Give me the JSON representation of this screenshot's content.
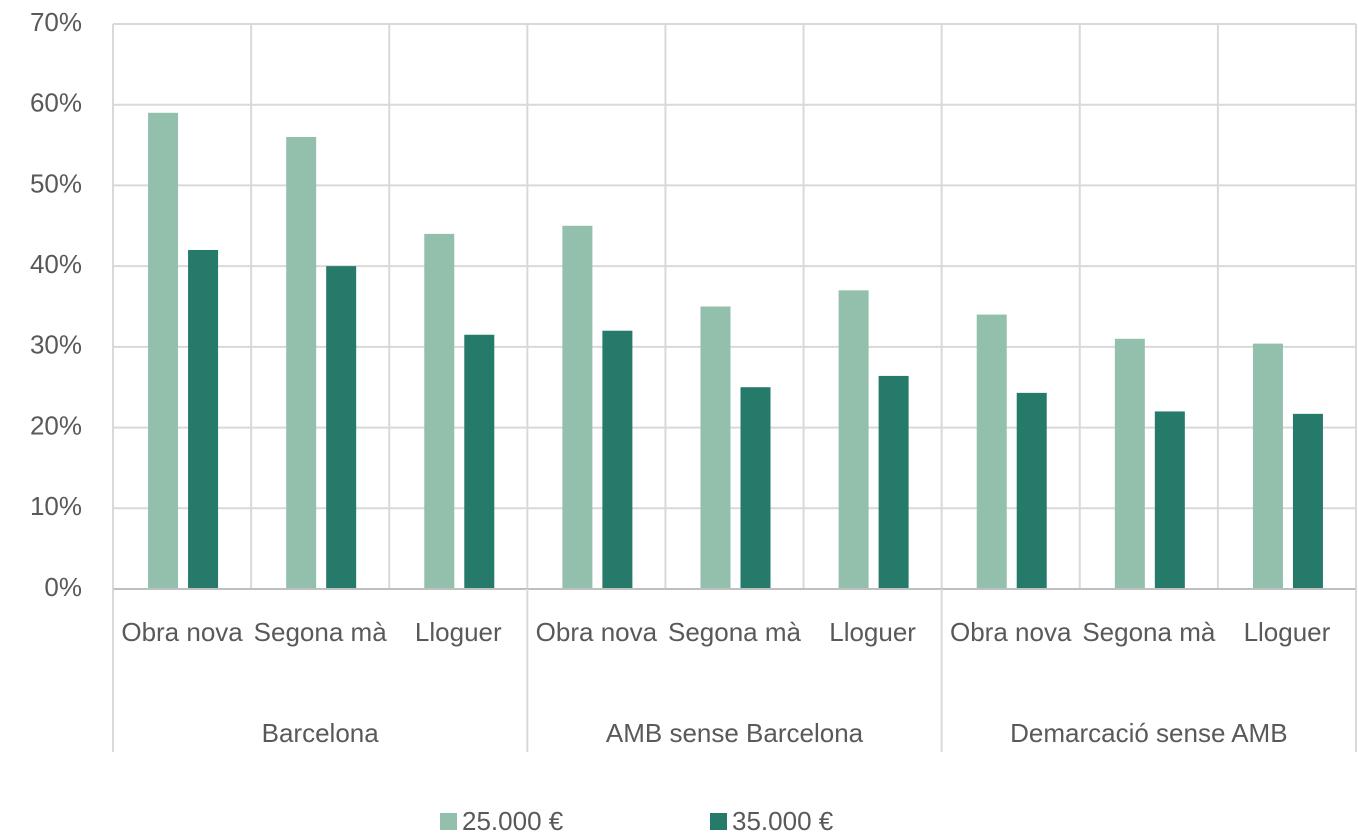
{
  "chart_data": {
    "type": "bar",
    "category_groups": [
      {
        "name": "Barcelona",
        "categories": [
          "Obra nova",
          "Segona mà",
          "Lloguer"
        ]
      },
      {
        "name": "AMB sense Barcelona",
        "categories": [
          "Obra nova",
          "Segona mà",
          "Lloguer"
        ]
      },
      {
        "name": "Demarcació sense AMB",
        "categories": [
          "Obra nova",
          "Segona mà",
          "Lloguer"
        ]
      }
    ],
    "series": [
      {
        "name": "25.000 €",
        "color": "#93bfad",
        "values": [
          59,
          56,
          44,
          45,
          35,
          37,
          34,
          31,
          30.4
        ]
      },
      {
        "name": "35.000 €",
        "color": "#267a69",
        "values": [
          42,
          40,
          31.5,
          32,
          25,
          26.4,
          24.3,
          22,
          21.7
        ]
      }
    ],
    "ylim": [
      0,
      70
    ],
    "yticks": [
      {
        "value": 0,
        "label": "0%"
      },
      {
        "value": 10,
        "label": "10%"
      },
      {
        "value": 20,
        "label": "20%"
      },
      {
        "value": 30,
        "label": "30%"
      },
      {
        "value": 40,
        "label": "40%"
      },
      {
        "value": 50,
        "label": "50%"
      },
      {
        "value": 60,
        "label": "60%"
      },
      {
        "value": 70,
        "label": "70%"
      }
    ],
    "grid": true,
    "legend": "bottom"
  }
}
